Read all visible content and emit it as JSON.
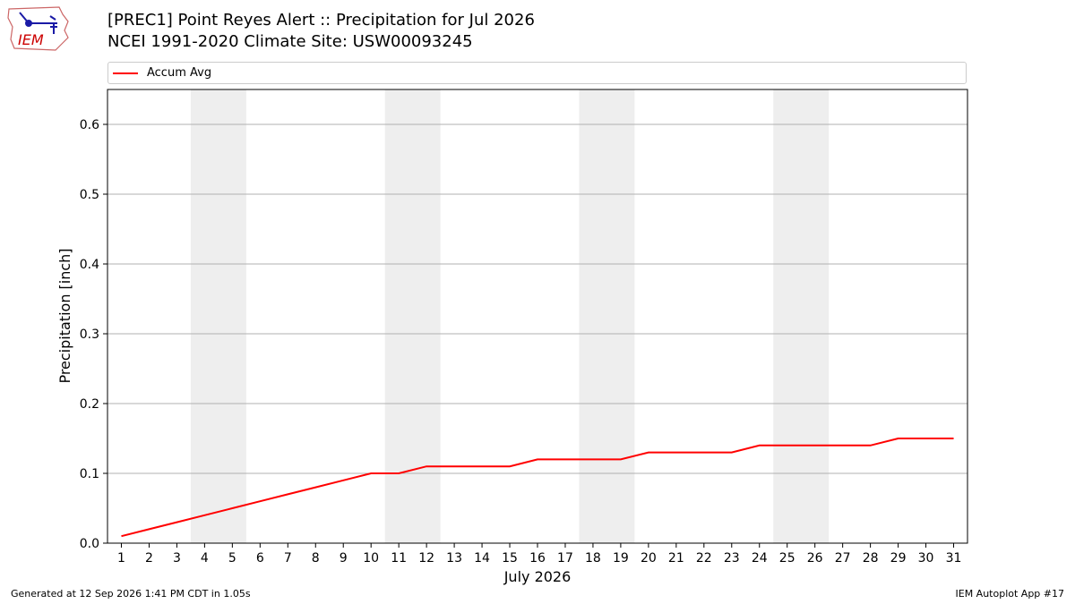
{
  "header": {
    "title_line1": "[PREC1] Point Reyes Alert :: Precipitation for Jul 2026",
    "title_line2": "NCEI 1991-2020 Climate Site: USW00093245"
  },
  "logo": {
    "text": "IEM",
    "icon": "iem-iowa-logo"
  },
  "footer": {
    "left": "Generated at 12 Sep 2026 1:41 PM CDT in 1.05s",
    "right": "IEM Autoplot App #17"
  },
  "colors": {
    "series": "#ff0000",
    "weekend_band": "#eeeeee",
    "grid": "#b0b0b0",
    "logo": "#1a1aa6",
    "logo_text": "#cc0000"
  },
  "chart_data": {
    "type": "line",
    "title": "[PREC1] Point Reyes Alert :: Precipitation for Jul 2026",
    "subtitle": "NCEI 1991-2020 Climate Site: USW00093245",
    "xlabel": "July 2026",
    "ylabel": "Precipitation [inch]",
    "xlim": [
      0.5,
      31.5
    ],
    "ylim": [
      0,
      0.65
    ],
    "yticks": [
      0.0,
      0.1,
      0.2,
      0.3,
      0.4,
      0.5,
      0.6
    ],
    "ytick_labels": [
      "0.0",
      "0.1",
      "0.2",
      "0.3",
      "0.4",
      "0.5",
      "0.6"
    ],
    "x": [
      1,
      2,
      3,
      4,
      5,
      6,
      7,
      8,
      9,
      10,
      11,
      12,
      13,
      14,
      15,
      16,
      17,
      18,
      19,
      20,
      21,
      22,
      23,
      24,
      25,
      26,
      27,
      28,
      29,
      30,
      31
    ],
    "xtick_labels": [
      "1",
      "2",
      "3",
      "4",
      "5",
      "6",
      "7",
      "8",
      "9",
      "10",
      "11",
      "12",
      "13",
      "14",
      "15",
      "16",
      "17",
      "18",
      "19",
      "20",
      "21",
      "22",
      "23",
      "24",
      "25",
      "26",
      "27",
      "28",
      "29",
      "30",
      "31"
    ],
    "series": [
      {
        "name": "Accum Avg",
        "color": "#ff0000",
        "values": [
          0.01,
          0.02,
          0.03,
          0.04,
          0.05,
          0.06,
          0.07,
          0.08,
          0.09,
          0.1,
          0.1,
          0.11,
          0.11,
          0.11,
          0.11,
          0.12,
          0.12,
          0.12,
          0.12,
          0.13,
          0.13,
          0.13,
          0.13,
          0.14,
          0.14,
          0.14,
          0.14,
          0.14,
          0.15,
          0.15,
          0.15
        ]
      }
    ],
    "weekend_bands": [
      [
        3.5,
        5.5
      ],
      [
        10.5,
        12.5
      ],
      [
        17.5,
        19.5
      ],
      [
        24.5,
        26.5
      ]
    ],
    "grid": "horizontal",
    "legend": "top"
  }
}
